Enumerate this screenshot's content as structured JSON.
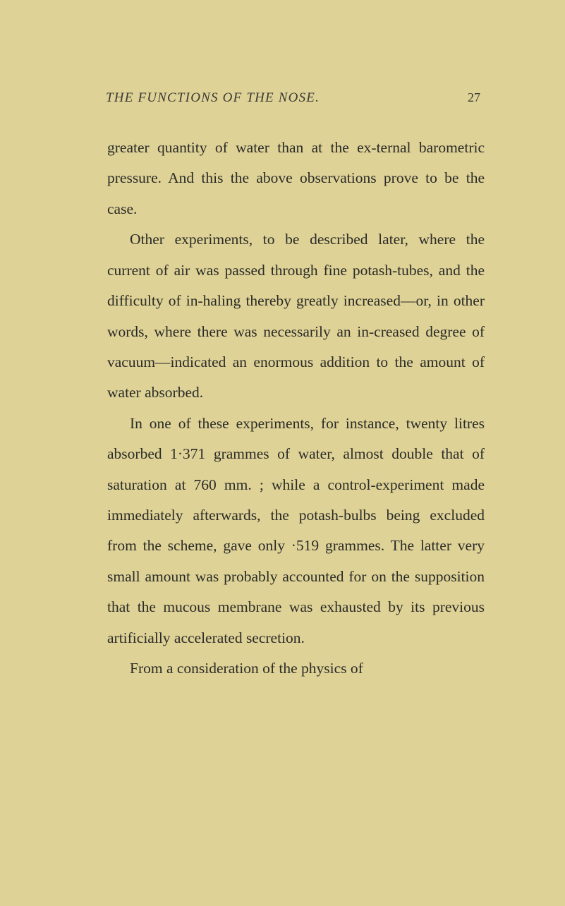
{
  "header": {
    "title": "THE FUNCTIONS OF THE NOSE.",
    "pageNumber": "27"
  },
  "paragraphs": {
    "p1": "greater quantity of water than at the ex-ternal barometric pressure. And this the above observations prove to be the case.",
    "p2": "Other experiments, to be described later, where the current of air was passed through fine potash-tubes, and the difficulty of in-haling thereby greatly increased—or, in other words, where there was necessarily an in-creased degree of vacuum—indicated an enormous addition to the amount of water absorbed.",
    "p3": "In one of these experiments, for instance, twenty litres absorbed 1·371 grammes of water, almost double that of saturation at 760 mm. ; while a control-experiment made immediately afterwards, the potash-bulbs being excluded from the scheme, gave only ·519 grammes. The latter very small amount was probably accounted for on the supposition that the mucous membrane was exhausted by its previous artificially accelerated secretion.",
    "p4": "From a consideration of the physics of"
  },
  "styling": {
    "pageWidth": 801,
    "pageHeight": 1284,
    "backgroundColor": "#ded296",
    "textColor": "#2b2b28",
    "headerFontSize": 19,
    "bodyFontSize": 21.5,
    "lineHeight": 2.02,
    "fontFamily": "Georgia, Times New Roman, serif",
    "paddingTop": 128,
    "paddingRight": 112,
    "paddingBottom": 110,
    "paddingLeft": 150,
    "textIndent": 32
  }
}
